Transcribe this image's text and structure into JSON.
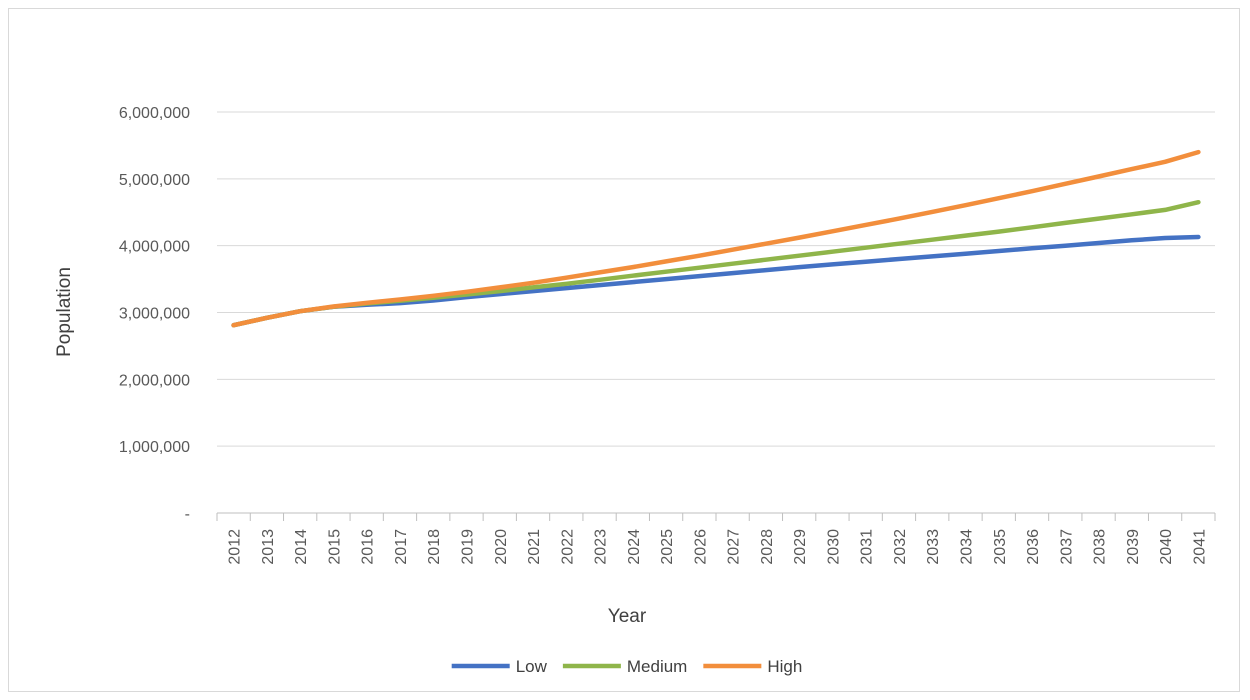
{
  "chart_data": {
    "type": "line",
    "title": "",
    "xlabel": "Year",
    "ylabel": "Population",
    "x": [
      "2012",
      "2013",
      "2014",
      "2015",
      "2016",
      "2017",
      "2018",
      "2019",
      "2020",
      "2021",
      "2022",
      "2023",
      "2024",
      "2025",
      "2026",
      "2027",
      "2028",
      "2029",
      "2030",
      "2031",
      "2032",
      "2033",
      "2034",
      "2035",
      "2036",
      "2037",
      "2038",
      "2039",
      "2040",
      "2041"
    ],
    "ylim": [
      0,
      6000000
    ],
    "yticks": [
      0,
      1000000,
      2000000,
      3000000,
      4000000,
      5000000,
      6000000
    ],
    "ytick_labels": [
      "-",
      "1,000,000",
      "2,000,000",
      "3,000,000",
      "4,000,000",
      "5,000,000",
      "6,000,000"
    ],
    "grid": true,
    "legend_position": "bottom",
    "series": [
      {
        "name": "Low",
        "color": "#4472c4",
        "values": [
          2810000,
          2920000,
          3020000,
          3085000,
          3115000,
          3140000,
          3180000,
          3230000,
          3275000,
          3320000,
          3365000,
          3410000,
          3455000,
          3500000,
          3545000,
          3590000,
          3635000,
          3680000,
          3720000,
          3760000,
          3800000,
          3840000,
          3880000,
          3920000,
          3960000,
          4000000,
          4040000,
          4080000,
          4115000,
          4130000
        ]
      },
      {
        "name": "Medium",
        "color": "#8fb54a",
        "values": [
          2810000,
          2920000,
          3020000,
          3085000,
          3135000,
          3175000,
          3220000,
          3270000,
          3320000,
          3375000,
          3430000,
          3490000,
          3550000,
          3610000,
          3670000,
          3730000,
          3790000,
          3850000,
          3910000,
          3970000,
          4030000,
          4090000,
          4150000,
          4210000,
          4275000,
          4340000,
          4405000,
          4470000,
          4535000,
          4650000
        ]
      },
      {
        "name": "High",
        "color": "#f28e3c",
        "values": [
          2810000,
          2920000,
          3020000,
          3090000,
          3145000,
          3195000,
          3250000,
          3310000,
          3375000,
          3445000,
          3520000,
          3600000,
          3680000,
          3765000,
          3850000,
          3940000,
          4030000,
          4120000,
          4215000,
          4310000,
          4405000,
          4505000,
          4605000,
          4710000,
          4815000,
          4925000,
          5035000,
          5145000,
          5255000,
          5400000
        ]
      }
    ]
  }
}
